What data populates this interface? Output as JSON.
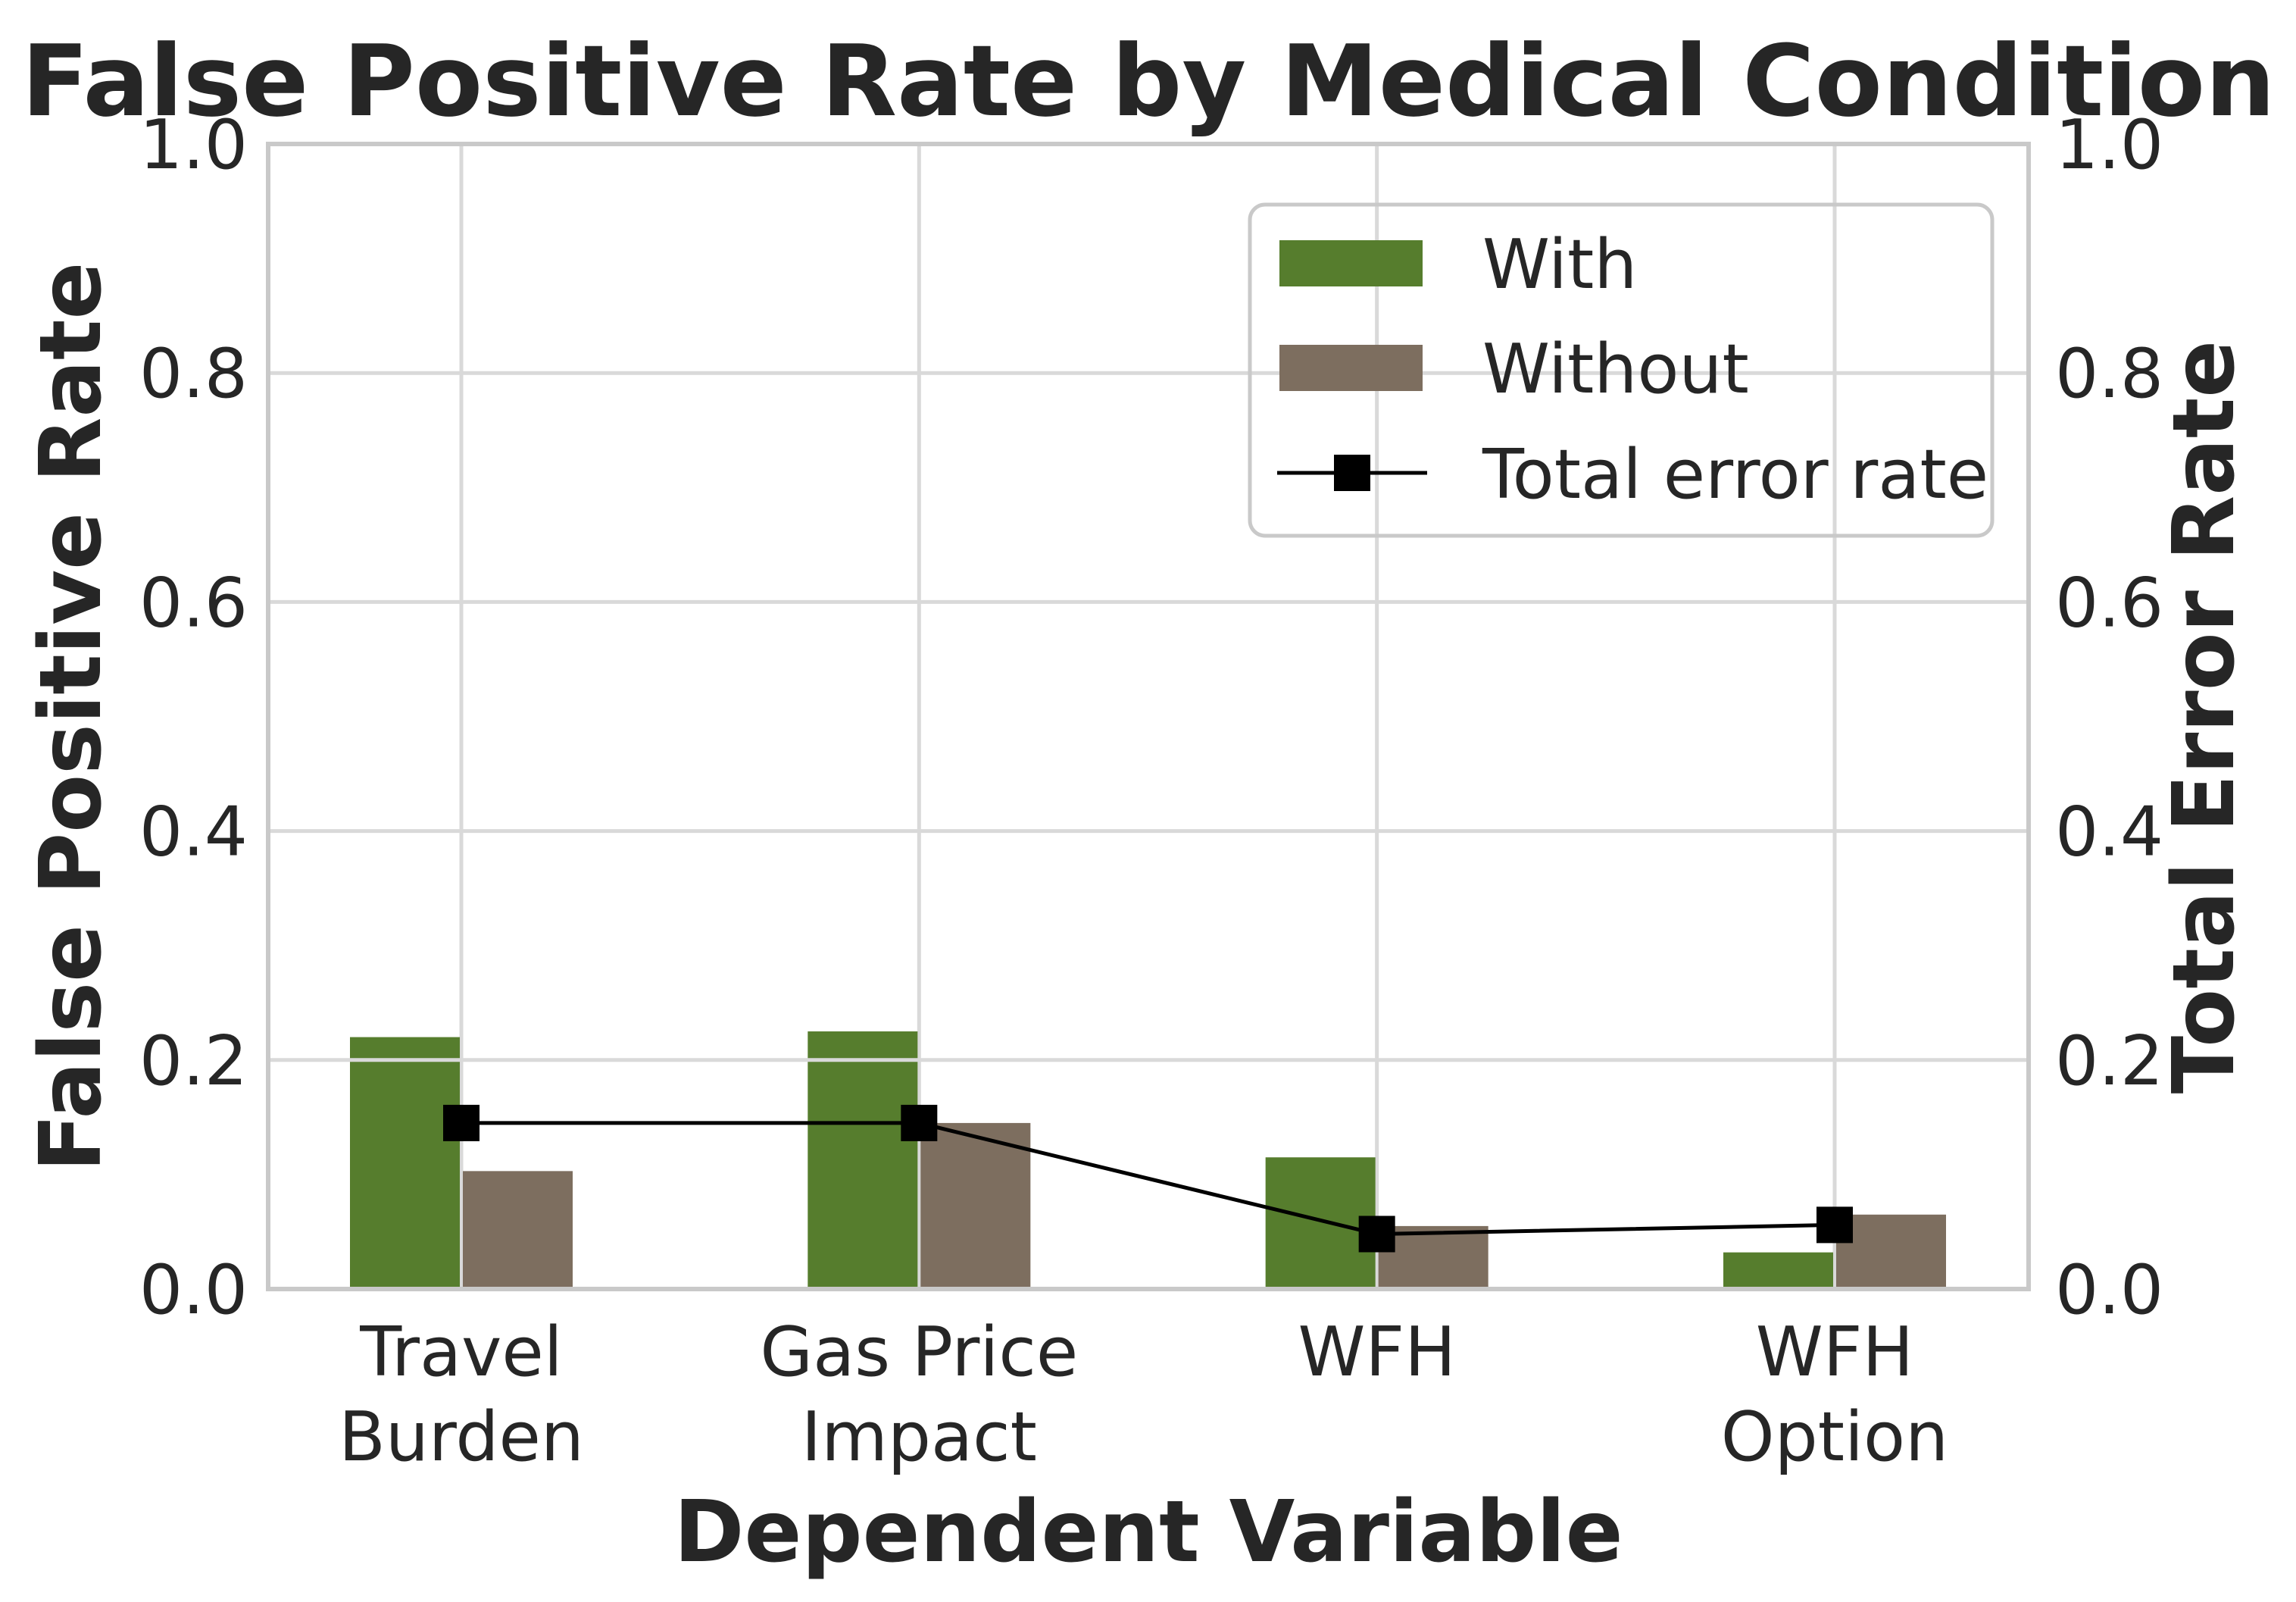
{
  "chart_data": {
    "type": "bar",
    "title": "False Positive Rate by Medical Condition",
    "xlabel": "Dependent Variable",
    "ylabel_left": "False Positive Rate",
    "ylabel_right": "Total Error Rate",
    "categories": [
      "Travel\nBurden",
      "Gas Price\nImpact",
      "WFH",
      "WFH\nOption"
    ],
    "series": [
      {
        "name": "With",
        "type": "bar",
        "color": "#567d2d",
        "values": [
          0.22,
          0.225,
          0.115,
          0.032
        ]
      },
      {
        "name": "Without",
        "type": "bar",
        "color": "#7d6e5f",
        "values": [
          0.103,
          0.145,
          0.055,
          0.065
        ]
      },
      {
        "name": "Total error rate",
        "type": "line",
        "color": "#000000",
        "marker": "square",
        "values": [
          0.145,
          0.145,
          0.048,
          0.056
        ]
      }
    ],
    "ylim": [
      0.0,
      1.0
    ],
    "yticks": [
      "0.0",
      "0.2",
      "0.4",
      "0.6",
      "0.8",
      "1.0"
    ],
    "grid": true,
    "legend_position": "upper right"
  },
  "legend": {
    "items": [
      "With",
      "Without",
      "Total error rate"
    ]
  },
  "colors": {
    "bar_with": "#567d2d",
    "bar_without": "#7d6e5f",
    "line": "#000000",
    "grid": "#d9d9d9",
    "spine": "#c9c9c9",
    "text": "#262626",
    "background": "#ffffff"
  }
}
